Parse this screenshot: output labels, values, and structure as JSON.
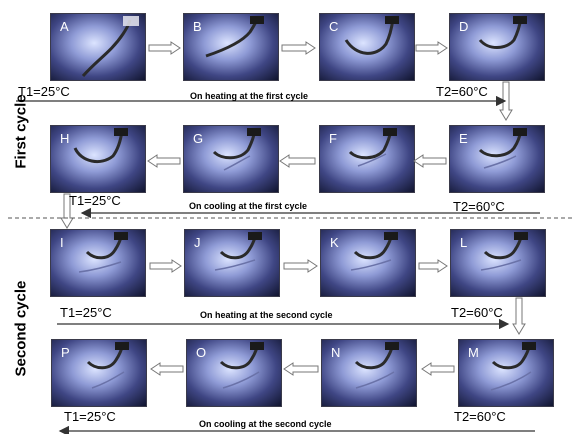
{
  "panels": [
    "A",
    "B",
    "C",
    "D",
    "E",
    "F",
    "G",
    "H",
    "I",
    "J",
    "K",
    "L",
    "M",
    "N",
    "O",
    "P"
  ],
  "cycle_labels": {
    "first": "First cycle",
    "second": "Second cycle"
  },
  "temps": {
    "r1_left": "T1=25°C",
    "r1_right": "T2=60°C",
    "r2_left": "T1=25°C",
    "r2_right": "T2=60°C",
    "r3_left": "T1=25°C",
    "r3_right": "T2=60°C",
    "r4_left": "T1=25°C",
    "r4_right": "T2=60°C"
  },
  "captions": {
    "heat1": "On heating at the first cycle",
    "cool1": "On cooling at the first cycle",
    "heat2": "On heating  at the second cycle",
    "cool2": "On cooling at the second cycle"
  }
}
